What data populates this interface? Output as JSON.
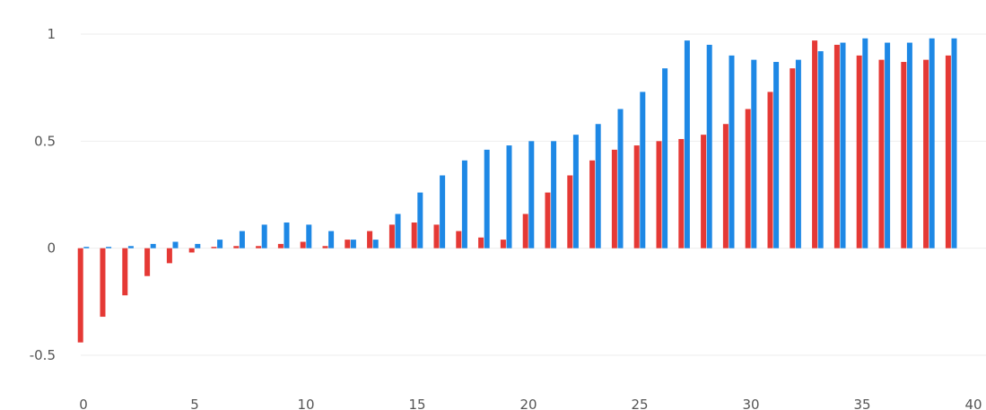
{
  "chart_data": {
    "type": "bar",
    "title": "",
    "xlabel": "",
    "ylabel": "",
    "ylim": [
      -0.5,
      1
    ],
    "grid": true,
    "y_ticks": [
      {
        "value": 1,
        "label": "1"
      },
      {
        "value": 0.5,
        "label": "0.5"
      },
      {
        "value": 0,
        "label": "0"
      },
      {
        "value": -0.5,
        "label": "-0.5"
      }
    ],
    "x_ticks": [
      {
        "value": 0,
        "label": "0"
      },
      {
        "value": 5,
        "label": "5"
      },
      {
        "value": 10,
        "label": "10"
      },
      {
        "value": 15,
        "label": "15"
      },
      {
        "value": 20,
        "label": "20"
      },
      {
        "value": 25,
        "label": "25"
      },
      {
        "value": 30,
        "label": "30"
      },
      {
        "value": 35,
        "label": "35"
      },
      {
        "value": 40,
        "label": "40"
      }
    ],
    "x": [
      0,
      1,
      2,
      3,
      4,
      5,
      6,
      7,
      8,
      9,
      10,
      11,
      12,
      13,
      14,
      15,
      16,
      17,
      18,
      19,
      20,
      21,
      22,
      23,
      24,
      25,
      26,
      27,
      28,
      29,
      30,
      31,
      32,
      33,
      34,
      35,
      36,
      37,
      38,
      39
    ],
    "series": [
      {
        "color": "#1e88e5",
        "values": [
          0.0,
          0.0,
          0.01,
          0.02,
          0.03,
          0.02,
          0.04,
          0.08,
          0.11,
          0.12,
          0.11,
          0.08,
          0.04,
          0.04,
          0.16,
          0.26,
          0.34,
          0.41,
          0.46,
          0.48,
          0.5,
          0.5,
          0.53,
          0.58,
          0.65,
          0.73,
          0.84,
          0.97,
          0.95,
          0.9,
          0.88,
          0.87,
          0.88,
          0.92,
          0.96,
          0.98,
          0.96,
          0.96,
          0.98,
          0.98
        ]
      },
      {
        "color": "#e53935",
        "values": [
          -0.44,
          -0.32,
          -0.22,
          -0.13,
          -0.07,
          -0.02,
          0.0,
          0.01,
          0.01,
          0.02,
          0.03,
          0.01,
          0.04,
          0.08,
          0.11,
          0.12,
          0.11,
          0.08,
          0.05,
          0.04,
          0.16,
          0.26,
          0.34,
          0.41,
          0.46,
          0.48,
          0.5,
          0.51,
          0.53,
          0.58,
          0.65,
          0.73,
          0.84,
          0.97,
          0.95,
          0.9,
          0.88,
          0.87,
          0.88,
          0.9
        ]
      }
    ]
  }
}
